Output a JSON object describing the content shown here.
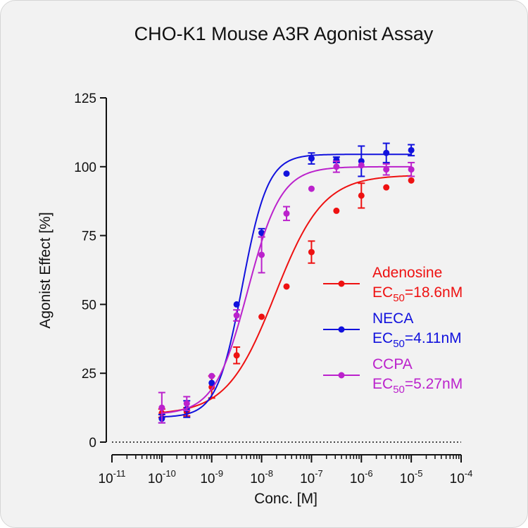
{
  "chart_data": {
    "type": "scatter",
    "title": "CHO-K1 Mouse A3R Agonist Assay",
    "xlabel": "Conc. [M]",
    "ylabel": "Agonist Effect [%]",
    "x_scale": "log",
    "xlim": [
      1e-11,
      0.0001
    ],
    "ylim": [
      0,
      125
    ],
    "y_ticks": [
      0,
      25,
      50,
      75,
      100,
      125
    ],
    "x_ticks": [
      {
        "value": 1e-11,
        "base": "10",
        "exp": "-11"
      },
      {
        "value": 1e-10,
        "base": "10",
        "exp": "-10"
      },
      {
        "value": 1e-09,
        "base": "10",
        "exp": "-9"
      },
      {
        "value": 1e-08,
        "base": "10",
        "exp": "-8"
      },
      {
        "value": 1e-07,
        "base": "10",
        "exp": "-7"
      },
      {
        "value": 1e-06,
        "base": "10",
        "exp": "-6"
      },
      {
        "value": 1e-05,
        "base": "10",
        "exp": "-5"
      },
      {
        "value": 0.0001,
        "base": "10",
        "exp": "-4"
      }
    ],
    "baseline": {
      "y": 0,
      "style": "dotted"
    },
    "legend_position": "right",
    "x": [
      1e-10,
      3.162e-10,
      1e-09,
      3.162e-09,
      1e-08,
      3.162e-08,
      1e-07,
      3.162e-07,
      1e-06,
      3.162e-06,
      1e-05
    ],
    "series": [
      {
        "name": "Adenosine",
        "ec50_label": {
          "prefix": "EC",
          "sub": "50",
          "suffix": "=18.6nM"
        },
        "color": "#ee1111",
        "y": [
          10.5,
          11,
          20,
          31.5,
          45.5,
          56.5,
          69,
          84,
          89.5,
          92.5,
          95
        ],
        "err": [
          1.5,
          1.5,
          4,
          3,
          0,
          0,
          4,
          0,
          4.5,
          0,
          0
        ],
        "fit": {
          "bottom": 10,
          "top": 97,
          "ec50": 1.86e-08,
          "hill": 0.9
        }
      },
      {
        "name": "NECA",
        "ec50_label": {
          "prefix": "EC",
          "sub": "50",
          "suffix": "=4.11nM"
        },
        "color": "#1111dd",
        "y": [
          8.5,
          12,
          21.5,
          50,
          76,
          97.5,
          103,
          102.5,
          102,
          105,
          106
        ],
        "err": [
          1.5,
          3,
          0,
          0,
          1.5,
          0,
          2,
          1,
          5.5,
          3.5,
          2
        ],
        "fit": {
          "bottom": 9,
          "top": 104.5,
          "ec50": 4.11e-09,
          "hill": 1.7
        }
      },
      {
        "name": "CCPA",
        "ec50_label": {
          "prefix": "EC",
          "sub": "50",
          "suffix": "=5.27nM"
        },
        "color": "#bb22cc",
        "y": [
          12.5,
          14,
          24,
          46,
          68,
          83,
          92,
          100,
          100.5,
          99,
          99
        ],
        "err": [
          5.5,
          2.5,
          0,
          2,
          6.5,
          2.5,
          0,
          2,
          0,
          2,
          2.5
        ],
        "fit": {
          "bottom": 10,
          "top": 100,
          "ec50": 5.27e-09,
          "hill": 1.3
        }
      }
    ]
  }
}
